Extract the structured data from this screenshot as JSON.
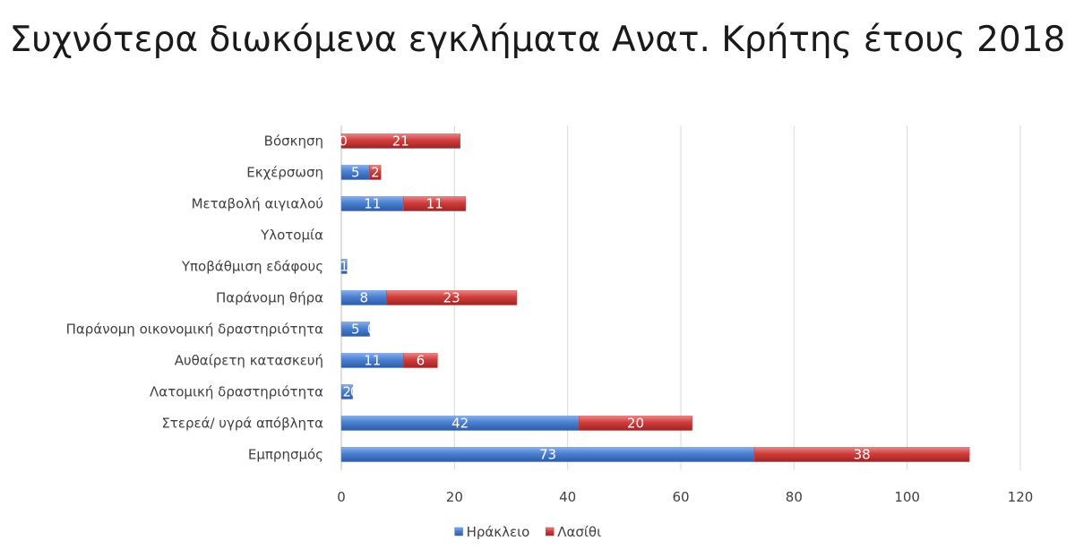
{
  "chart_data": {
    "type": "bar",
    "orientation": "horizontal",
    "stacked": true,
    "title": "Συχνότερα διωκόμενα εγκλήματα Ανατ. Κρήτης έτους 2018",
    "categories": [
      "Εμπρησμός",
      "Στερεά/ υγρά απόβλητα",
      "Λατομική δραστηριότητα",
      "Αυθαίρετη κατασκευή",
      "Παράνομη οικονομική δραστηριότητα",
      "Παράνομη θήρα",
      "Υποβάθμιση εδάφους",
      "Υλοτομία",
      "Μεταβολή αιγιαλού",
      "Εκχέρσωση",
      "Βόσκηση"
    ],
    "series": [
      {
        "name": "Ηράκλειο",
        "color": "#4a7fd0",
        "values": [
          73,
          42,
          2,
          11,
          5,
          8,
          1,
          0,
          11,
          5,
          0
        ],
        "labels": [
          "73",
          "42",
          "2",
          "11",
          "5",
          "8",
          "1",
          "",
          "11",
          "5",
          "0"
        ]
      },
      {
        "name": "Λασίθι",
        "color": "#d03c3c",
        "values": [
          38,
          20,
          0,
          6,
          0,
          23,
          0,
          0,
          11,
          2,
          21
        ],
        "labels": [
          "38",
          "20",
          "0",
          "6",
          "0",
          "23",
          "",
          "",
          "11",
          "2",
          "21"
        ]
      }
    ],
    "xlim": [
      0,
      120
    ],
    "xticks": [
      "0",
      "20",
      "40",
      "60",
      "80",
      "100",
      "120"
    ],
    "grid": true,
    "legend": "bottom"
  }
}
